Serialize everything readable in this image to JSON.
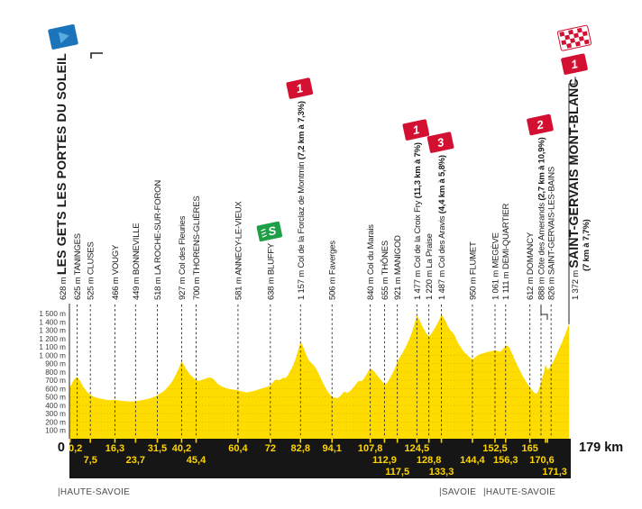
{
  "colors": {
    "profile_yellow": "#FFDC00",
    "grid_on_yellow": "#b98f00",
    "bar_black": "#161616",
    "km_text_yellow": "#FFD500",
    "category_red": "#D31032",
    "sprint_green": "#1FA048",
    "start_flag_blue": "#1B74BB",
    "start_flag_light": "#58ABDF",
    "dashed_line": "#2b2b2b"
  },
  "start": {
    "elevation": "628 m",
    "name": "LES GETS LES PORTES DU SOLEIL",
    "km": 0,
    "origin_label": "0",
    "flag": "start-flag-blue"
  },
  "finish": {
    "elevation": "1 372 m",
    "name": "SAINT-GERVAIS MONT-BLANC",
    "stats": "(7 km à 7,7%)",
    "km": 179,
    "total_label": "179 km",
    "category": "1",
    "flag": "checkered-flag"
  },
  "chart_data": {
    "type": "area",
    "x_unit": "km",
    "y_unit": "m",
    "xlim": [
      0,
      179
    ],
    "ylim": [
      0,
      1500
    ],
    "grid": true,
    "y_tick_labels": [
      "100 m",
      "200 m",
      "300 m",
      "400 m",
      "500 m",
      "600 m",
      "700 m",
      "800 m",
      "900 m",
      "1 000 m",
      "1 100 m",
      "1 200 m",
      "1 300 m",
      "1 400 m",
      "1 500 m"
    ],
    "waypoints": [
      {
        "km": 0.2,
        "km_label": "0,2",
        "row": 1,
        "elevation": "625 m",
        "name": "TANINGES",
        "label_dx": 8,
        "km_label_dx": 6
      },
      {
        "km": 7.5,
        "km_label": "7,5",
        "row": 2,
        "elevation": "525 m",
        "name": "CLUSES"
      },
      {
        "km": 16.3,
        "km_label": "16,3",
        "row": 1,
        "elevation": "466 m",
        "name": "VOUGY"
      },
      {
        "km": 23.7,
        "km_label": "23,7",
        "row": 2,
        "elevation": "449 m",
        "name": "BONNEVILLE"
      },
      {
        "km": 31.5,
        "km_label": "31,5",
        "row": 1,
        "elevation": "518 m",
        "name": "LA ROCHE-SUR-FORON"
      },
      {
        "km": 40.2,
        "km_label": "40,2",
        "row": 1,
        "elevation": "927 m",
        "name": "Col des Fleuries"
      },
      {
        "km": 45.4,
        "km_label": "45,4",
        "row": 2,
        "elevation": "700 m",
        "name": "THORENS-GLIÈRES"
      },
      {
        "km": 60.4,
        "km_label": "60,4",
        "row": 1,
        "elevation": "581 m",
        "name": "ANNECY-LE-VIEUX"
      },
      {
        "km": 72,
        "km_label": "72",
        "row": 1,
        "elevation": "638 m",
        "name": "BLUFFY",
        "marker": {
          "type": "sprint"
        }
      },
      {
        "km": 82.8,
        "km_label": "82,8",
        "row": 1,
        "elevation": "1 157 m",
        "name": "Col de la Forclaz de Montmin",
        "stats": "(7,2 km à 7,3%)",
        "marker": {
          "type": "category",
          "value": "1"
        }
      },
      {
        "km": 94.1,
        "km_label": "94,1",
        "row": 1,
        "elevation": "506 m",
        "name": "Faverges"
      },
      {
        "km": 107.8,
        "km_label": "107,8",
        "row": 1,
        "elevation": "840 m",
        "name": "Col du Marais"
      },
      {
        "km": 112.9,
        "km_label": "112,9",
        "row": 2,
        "elevation": "655 m",
        "name": "THÔNES"
      },
      {
        "km": 117.5,
        "km_label": "117,5",
        "row": 3,
        "elevation": "921 m",
        "name": "MANIGOD"
      },
      {
        "km": 124.5,
        "km_label": "124,5",
        "row": 1,
        "elevation": "1 477 m",
        "name": "Col de la Croix Fry",
        "stats": "(11,3 km à 7%)",
        "marker": {
          "type": "category",
          "value": "1"
        }
      },
      {
        "km": 128.8,
        "km_label": "128,8",
        "row": 2,
        "elevation": "1 220 m",
        "name": "La Praise"
      },
      {
        "km": 133.3,
        "km_label": "133,3",
        "row": 3,
        "elevation": "1 487 m",
        "name": "Col des Aravis",
        "stats": "(4,4 km à 5,8%)",
        "marker": {
          "type": "category",
          "value": "3"
        }
      },
      {
        "km": 144.4,
        "km_label": "144,4",
        "row": 2,
        "elevation": "950 m",
        "name": "FLUMET"
      },
      {
        "km": 152.5,
        "km_label": "152,5",
        "row": 1,
        "elevation": "1 061 m",
        "name": "MEGÈVE"
      },
      {
        "km": 156.3,
        "km_label": "156,3",
        "row": 2,
        "elevation": "1 111 m",
        "name": "DEMI-QUARTIER"
      },
      {
        "km": 165,
        "km_label": "165",
        "row": 1,
        "elevation": "612 m",
        "name": "DOMANCY"
      },
      {
        "km": 170.6,
        "km_label": "170,6",
        "row": 2,
        "elevation": "888 m",
        "name": "Côte des Amerands",
        "stats": "(2,7 km à 10,9%)",
        "label_dx": -5,
        "km_label_dx": -4,
        "marker": {
          "type": "category",
          "value": "2"
        }
      },
      {
        "km": 171.3,
        "km_label": "171,3",
        "row": 3,
        "elevation": "826 m",
        "name": "SAINT-GERVAIS-LES-BAINS",
        "label_dx": 4,
        "km_label_dx": 8
      }
    ],
    "departments": [
      {
        "label": "HAUTE-SAVOIE",
        "x": 64
      },
      {
        "label": "SAVOIE",
        "x": 487
      },
      {
        "label": "HAUTE-SAVOIE",
        "x": 536
      }
    ],
    "profile": [
      [
        0,
        628
      ],
      [
        0.2,
        625
      ],
      [
        0.7,
        648
      ],
      [
        1.4,
        695
      ],
      [
        2.3,
        735
      ],
      [
        3.1,
        726
      ],
      [
        4,
        682
      ],
      [
        5,
        620
      ],
      [
        6.2,
        565
      ],
      [
        7.5,
        525
      ],
      [
        8.6,
        505
      ],
      [
        10,
        490
      ],
      [
        11.5,
        478
      ],
      [
        13,
        468
      ],
      [
        14.5,
        462
      ],
      [
        16.3,
        466
      ],
      [
        18,
        455
      ],
      [
        20,
        450
      ],
      [
        22,
        446
      ],
      [
        23.7,
        449
      ],
      [
        25.5,
        459
      ],
      [
        27.5,
        472
      ],
      [
        29.5,
        490
      ],
      [
        31.5,
        518
      ],
      [
        32.3,
        540
      ],
      [
        33.2,
        556
      ],
      [
        34.2,
        582
      ],
      [
        35.2,
        618
      ],
      [
        36.2,
        658
      ],
      [
        37.2,
        708
      ],
      [
        38.2,
        772
      ],
      [
        39.2,
        845
      ],
      [
        40.2,
        927
      ],
      [
        41,
        885
      ],
      [
        42,
        825
      ],
      [
        43.2,
        772
      ],
      [
        44.3,
        735
      ],
      [
        45.4,
        700
      ],
      [
        46.4,
        694
      ],
      [
        47.4,
        704
      ],
      [
        48.4,
        716
      ],
      [
        49.4,
        728
      ],
      [
        50.4,
        735
      ],
      [
        51.4,
        722
      ],
      [
        52.4,
        684
      ],
      [
        53.5,
        648
      ],
      [
        55,
        620
      ],
      [
        56.5,
        602
      ],
      [
        58.2,
        590
      ],
      [
        60.4,
        581
      ],
      [
        61.4,
        571
      ],
      [
        62.4,
        561
      ],
      [
        63.5,
        556
      ],
      [
        65,
        563
      ],
      [
        66.5,
        576
      ],
      [
        68,
        593
      ],
      [
        69.5,
        606
      ],
      [
        71,
        623
      ],
      [
        72,
        638
      ],
      [
        72.7,
        665
      ],
      [
        73.5,
        698
      ],
      [
        74.3,
        710
      ],
      [
        75.1,
        699
      ],
      [
        75.9,
        714
      ],
      [
        76.7,
        734
      ],
      [
        77.4,
        727
      ],
      [
        78.2,
        756
      ],
      [
        79,
        805
      ],
      [
        80,
        868
      ],
      [
        81,
        952
      ],
      [
        82,
        1065
      ],
      [
        82.8,
        1157
      ],
      [
        83.5,
        1122
      ],
      [
        84.3,
        1055
      ],
      [
        85.1,
        985
      ],
      [
        85.9,
        935
      ],
      [
        86.7,
        908
      ],
      [
        87.5,
        882
      ],
      [
        88.3,
        843
      ],
      [
        89.1,
        793
      ],
      [
        89.9,
        738
      ],
      [
        90.7,
        682
      ],
      [
        91.5,
        628
      ],
      [
        92.3,
        578
      ],
      [
        93.2,
        535
      ],
      [
        94.1,
        506
      ],
      [
        95,
        492
      ],
      [
        96,
        487
      ],
      [
        97,
        506
      ],
      [
        97.8,
        542
      ],
      [
        98.6,
        563
      ],
      [
        99.4,
        549
      ],
      [
        100.2,
        561
      ],
      [
        101,
        586
      ],
      [
        101.9,
        621
      ],
      [
        102.8,
        660
      ],
      [
        103.7,
        695
      ],
      [
        104.5,
        686
      ],
      [
        105.4,
        712
      ],
      [
        106.2,
        756
      ],
      [
        107,
        801
      ],
      [
        107.8,
        840
      ],
      [
        108.6,
        826
      ],
      [
        109.4,
        796
      ],
      [
        110.2,
        762
      ],
      [
        111.1,
        726
      ],
      [
        112,
        690
      ],
      [
        112.9,
        655
      ],
      [
        113.6,
        661
      ],
      [
        114.3,
        692
      ],
      [
        115.1,
        741
      ],
      [
        115.9,
        792
      ],
      [
        116.7,
        851
      ],
      [
        117.5,
        921
      ],
      [
        118.4,
        976
      ],
      [
        119.3,
        1022
      ],
      [
        120.2,
        1082
      ],
      [
        121.1,
        1142
      ],
      [
        122,
        1212
      ],
      [
        123,
        1302
      ],
      [
        123.7,
        1382
      ],
      [
        124.5,
        1477
      ],
      [
        125.3,
        1432
      ],
      [
        126.1,
        1372
      ],
      [
        127,
        1312
      ],
      [
        127.9,
        1262
      ],
      [
        128.8,
        1220
      ],
      [
        129.6,
        1256
      ],
      [
        130.4,
        1296
      ],
      [
        131.2,
        1342
      ],
      [
        132.2,
        1402
      ],
      [
        133.3,
        1487
      ],
      [
        134.1,
        1452
      ],
      [
        134.9,
        1402
      ],
      [
        135.7,
        1342
      ],
      [
        136.5,
        1296
      ],
      [
        137.3,
        1276
      ],
      [
        138.1,
        1236
      ],
      [
        139,
        1166
      ],
      [
        139.9,
        1112
      ],
      [
        140.8,
        1066
      ],
      [
        141.7,
        1032
      ],
      [
        142.6,
        1002
      ],
      [
        143.5,
        976
      ],
      [
        144.4,
        950
      ],
      [
        145.4,
        976
      ],
      [
        146.4,
        1001
      ],
      [
        147.6,
        1018
      ],
      [
        149,
        1032
      ],
      [
        150.5,
        1044
      ],
      [
        152.5,
        1061
      ],
      [
        153.4,
        1049
      ],
      [
        154.4,
        1043
      ],
      [
        155.3,
        1072
      ],
      [
        156.3,
        1111
      ],
      [
        157,
        1117
      ],
      [
        157.8,
        1082
      ],
      [
        158.6,
        1022
      ],
      [
        159.4,
        962
      ],
      [
        160.2,
        902
      ],
      [
        161,
        846
      ],
      [
        161.8,
        792
      ],
      [
        162.6,
        742
      ],
      [
        163.4,
        696
      ],
      [
        164.2,
        652
      ],
      [
        165,
        612
      ],
      [
        165.8,
        579
      ],
      [
        166.5,
        552
      ],
      [
        167.2,
        541
      ],
      [
        167.8,
        556
      ],
      [
        168.4,
        612
      ],
      [
        169,
        678
      ],
      [
        169.6,
        748
      ],
      [
        170.1,
        812
      ],
      [
        170.6,
        888
      ],
      [
        171,
        856
      ],
      [
        171.3,
        826
      ],
      [
        171.9,
        842
      ],
      [
        172.6,
        878
      ],
      [
        173.4,
        927
      ],
      [
        174.2,
        982
      ],
      [
        175,
        1042
      ],
      [
        175.8,
        1102
      ],
      [
        176.6,
        1162
      ],
      [
        177.4,
        1227
      ],
      [
        178.2,
        1297
      ],
      [
        179,
        1372
      ]
    ]
  }
}
